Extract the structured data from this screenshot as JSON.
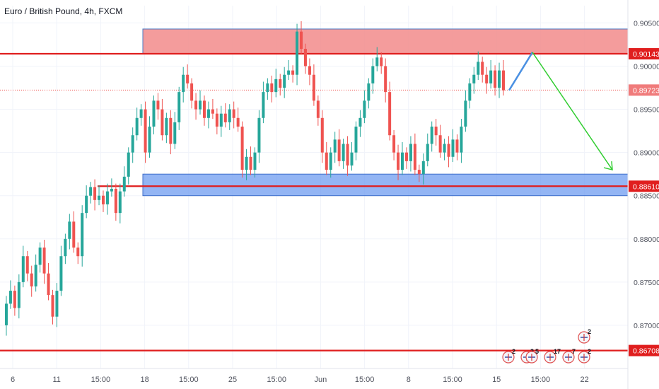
{
  "chart_title": "Euro / British Pound, 4h, FXCM",
  "chart_data": {
    "type": "candlestick",
    "title": "Euro / British Pound, 4h, FXCM",
    "ylim": [
      0.865,
      0.907
    ],
    "y_ticks": [
      "0.90500",
      "0.90000",
      "0.89500",
      "0.89000",
      "0.88500",
      "0.88000",
      "0.87500",
      "0.87000"
    ],
    "x_ticks": [
      "6",
      "11",
      "15:00",
      "18",
      "15:00",
      "25",
      "15:00",
      "Jun",
      "15:00",
      "8",
      "15:00",
      "15",
      "15:00",
      "22"
    ],
    "grid": true,
    "up_color": "#26a69a",
    "down_color": "#ef5350",
    "candle_path": [
      0.87,
      0.8725,
      0.874,
      0.872,
      0.875,
      0.878,
      0.876,
      0.8745,
      0.877,
      0.879,
      0.876,
      0.8735,
      0.871,
      0.874,
      0.878,
      0.88,
      0.882,
      0.879,
      0.878,
      0.883,
      0.885,
      0.886,
      0.8845,
      0.885,
      0.884,
      0.8855,
      0.8858,
      0.883,
      0.8855,
      0.8872,
      0.89,
      0.892,
      0.894,
      0.895,
      0.89,
      0.893,
      0.896,
      0.895,
      0.892,
      0.894,
      0.891,
      0.8935,
      0.897,
      0.899,
      0.898,
      0.896,
      0.895,
      0.896,
      0.894,
      0.895,
      0.8945,
      0.893,
      0.8945,
      0.8935,
      0.895,
      0.894,
      0.893,
      0.888,
      0.8895,
      0.888,
      0.89,
      0.894,
      0.897,
      0.898,
      0.897,
      0.8985,
      0.8975,
      0.899,
      0.8995,
      0.899,
      0.904,
      0.902,
      0.9,
      0.899,
      0.896,
      0.894,
      0.89,
      0.888,
      0.89,
      0.8915,
      0.889,
      0.891,
      0.8885,
      0.89,
      0.893,
      0.894,
      0.896,
      0.898,
      0.9,
      0.901,
      0.9,
      0.897,
      0.892,
      0.89,
      0.888,
      0.89,
      0.889,
      0.891,
      0.888,
      0.8875,
      0.889,
      0.891,
      0.893,
      0.892,
      0.89,
      0.891,
      0.8895,
      0.8915,
      0.89,
      0.893,
      0.896,
      0.898,
      0.899,
      0.9005,
      0.899,
      0.898,
      0.8995,
      0.8975,
      0.8995,
      0.8972
    ],
    "annotations": {
      "resistance_zone": [
        0.9014,
        0.9043
      ],
      "support_zone": [
        0.885,
        0.8875
      ],
      "levels": [
        {
          "price": 0.90143,
          "label": "0.90143",
          "color": "#e01e1e"
        },
        {
          "price": 0.8861,
          "label": "0.88610",
          "color": "#e01e1e"
        },
        {
          "price": 0.86708,
          "label": "0.86708",
          "color": "#e01e1e"
        }
      ],
      "last_price": {
        "price": 0.89723,
        "label": "0.89723",
        "color": "#ef5350"
      },
      "projection_up": [
        [
          0.8972
        ],
        [
          0.9016
        ]
      ],
      "projection_down": [
        [
          0.9016
        ],
        [
          0.888
        ]
      ],
      "projection_up_color": "#4a90e2",
      "projection_down_color": "#32cd32"
    },
    "event_markers": [
      {
        "count": "2",
        "row": "top"
      },
      {
        "count": "2",
        "row": "bottom"
      },
      {
        "count": "3",
        "row": "bottom"
      },
      {
        "count": "5",
        "row": "bottom"
      },
      {
        "count": "17",
        "row": "bottom"
      },
      {
        "count": "7",
        "row": "bottom"
      },
      {
        "count": "2",
        "row": "bottom"
      }
    ]
  }
}
